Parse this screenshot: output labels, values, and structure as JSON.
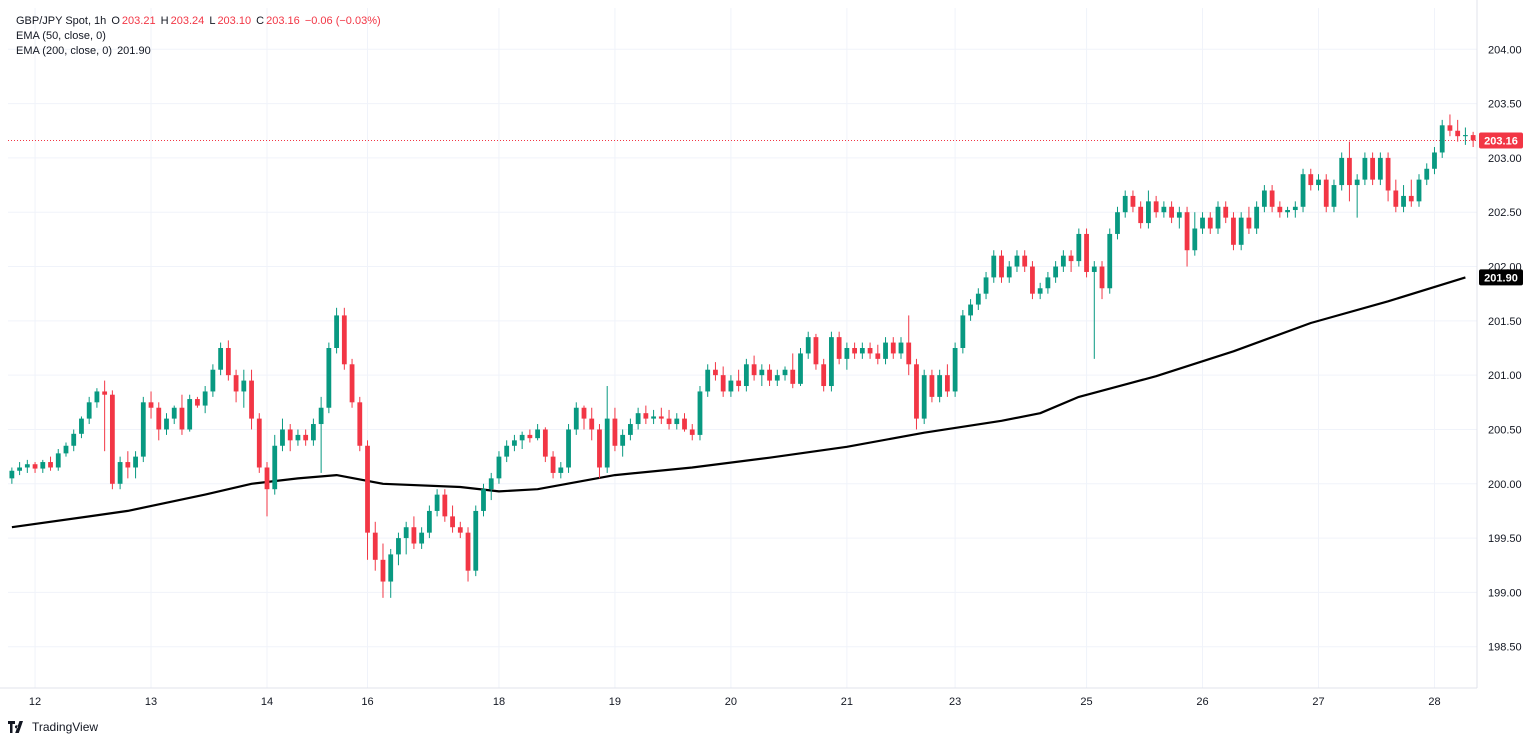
{
  "legend": {
    "symbol": "GBP/JPY Spot, 1h",
    "o_label": "O",
    "o_value": "203.21",
    "h_label": "H",
    "h_value": "203.24",
    "l_label": "L",
    "l_value": "203.10",
    "c_label": "C",
    "c_value": "203.16",
    "change": "−0.06 (−0.03%)",
    "ema50": "EMA (50, close, 0)",
    "ema200": "EMA (200, close, 0)",
    "ema200_value": "201.90"
  },
  "brand": {
    "name": "TradingView"
  },
  "colors": {
    "up": "#089981",
    "down": "#f23645",
    "ema": "#000000",
    "grid": "#f0f3fa",
    "axis_text": "#131722"
  },
  "chart_data": {
    "type": "candlestick",
    "title": "GBP/JPY Spot, 1h",
    "ylim": [
      198.12,
      204.38
    ],
    "y_ticks": [
      "204.00",
      "203.50",
      "203.00",
      "202.50",
      "202.00",
      "201.50",
      "201.00",
      "200.50",
      "200.00",
      "199.50",
      "199.00",
      "198.50"
    ],
    "x_ticks": [
      {
        "label": "12",
        "bar": 3
      },
      {
        "label": "13",
        "bar": 18
      },
      {
        "label": "14",
        "bar": 33
      },
      {
        "label": "16",
        "bar": 46
      },
      {
        "label": "18",
        "bar": 63
      },
      {
        "label": "19",
        "bar": 78
      },
      {
        "label": "20",
        "bar": 93
      },
      {
        "label": "21",
        "bar": 108
      },
      {
        "label": "23",
        "bar": 122
      },
      {
        "label": "25",
        "bar": 139
      },
      {
        "label": "26",
        "bar": 154
      },
      {
        "label": "27",
        "bar": 169
      },
      {
        "label": "28",
        "bar": 184
      }
    ],
    "last_price": 203.16,
    "last_price_label": "203.16",
    "ema200_label": "201.90",
    "candles": [
      [
        200.05,
        200.15,
        200.0,
        200.12
      ],
      [
        200.12,
        200.2,
        200.08,
        200.15
      ],
      [
        200.15,
        200.22,
        200.1,
        200.18
      ],
      [
        200.18,
        200.2,
        200.1,
        200.14
      ],
      [
        200.14,
        200.22,
        200.1,
        200.2
      ],
      [
        200.2,
        200.25,
        200.12,
        200.15
      ],
      [
        200.15,
        200.32,
        200.12,
        200.28
      ],
      [
        200.28,
        200.38,
        200.25,
        200.35
      ],
      [
        200.35,
        200.5,
        200.3,
        200.46
      ],
      [
        200.46,
        200.62,
        200.42,
        200.6
      ],
      [
        200.6,
        200.8,
        200.55,
        200.75
      ],
      [
        200.75,
        200.88,
        200.7,
        200.85
      ],
      [
        200.85,
        200.95,
        200.3,
        200.82
      ],
      [
        200.82,
        200.86,
        199.95,
        200.0
      ],
      [
        200.0,
        200.25,
        199.95,
        200.2
      ],
      [
        200.2,
        200.3,
        200.05,
        200.15
      ],
      [
        200.15,
        200.3,
        200.05,
        200.25
      ],
      [
        200.25,
        200.8,
        200.2,
        200.75
      ],
      [
        200.75,
        200.85,
        200.6,
        200.7
      ],
      [
        200.7,
        200.75,
        200.4,
        200.5
      ],
      [
        200.5,
        200.65,
        200.45,
        200.6
      ],
      [
        200.6,
        200.72,
        200.55,
        200.7
      ],
      [
        200.7,
        200.82,
        200.45,
        200.5
      ],
      [
        200.5,
        200.82,
        200.48,
        200.78
      ],
      [
        200.78,
        200.8,
        200.7,
        200.72
      ],
      [
        200.72,
        200.9,
        200.65,
        200.85
      ],
      [
        200.85,
        201.1,
        200.8,
        201.05
      ],
      [
        201.05,
        201.3,
        201.0,
        201.25
      ],
      [
        201.25,
        201.32,
        200.95,
        201.0
      ],
      [
        201.0,
        201.05,
        200.75,
        200.85
      ],
      [
        200.85,
        201.05,
        200.7,
        200.95
      ],
      [
        200.95,
        201.05,
        200.5,
        200.6
      ],
      [
        200.6,
        200.65,
        200.1,
        200.15
      ],
      [
        200.15,
        200.2,
        199.7,
        199.95
      ],
      [
        199.95,
        200.45,
        199.9,
        200.35
      ],
      [
        200.35,
        200.6,
        200.3,
        200.5
      ],
      [
        200.5,
        200.55,
        200.3,
        200.4
      ],
      [
        200.4,
        200.5,
        200.35,
        200.45
      ],
      [
        200.45,
        200.5,
        200.35,
        200.4
      ],
      [
        200.4,
        200.6,
        200.35,
        200.55
      ],
      [
        200.55,
        200.8,
        200.1,
        200.7
      ],
      [
        200.7,
        201.3,
        200.65,
        201.25
      ],
      [
        201.25,
        201.62,
        201.2,
        201.55
      ],
      [
        201.55,
        201.62,
        201.05,
        201.1
      ],
      [
        201.1,
        201.15,
        200.7,
        200.75
      ],
      [
        200.75,
        200.8,
        200.3,
        200.35
      ],
      [
        200.35,
        200.4,
        199.3,
        199.55
      ],
      [
        199.55,
        199.65,
        199.2,
        199.3
      ],
      [
        199.3,
        199.45,
        198.95,
        199.1
      ],
      [
        199.1,
        199.4,
        198.95,
        199.35
      ],
      [
        199.35,
        199.55,
        199.25,
        199.5
      ],
      [
        199.5,
        199.65,
        199.35,
        199.6
      ],
      [
        199.6,
        199.7,
        199.4,
        199.45
      ],
      [
        199.45,
        199.6,
        199.4,
        199.55
      ],
      [
        199.55,
        199.8,
        199.5,
        199.75
      ],
      [
        199.75,
        199.95,
        199.7,
        199.9
      ],
      [
        199.9,
        199.95,
        199.65,
        199.7
      ],
      [
        199.7,
        199.8,
        199.55,
        199.6
      ],
      [
        199.6,
        199.65,
        199.5,
        199.55
      ],
      [
        199.55,
        199.6,
        199.1,
        199.2
      ],
      [
        199.2,
        199.8,
        199.15,
        199.75
      ],
      [
        199.75,
        200.0,
        199.7,
        199.95
      ],
      [
        199.95,
        200.1,
        199.85,
        200.05
      ],
      [
        200.05,
        200.3,
        200.0,
        200.25
      ],
      [
        200.25,
        200.4,
        200.2,
        200.35
      ],
      [
        200.35,
        200.45,
        200.3,
        200.4
      ],
      [
        200.4,
        200.48,
        200.32,
        200.45
      ],
      [
        200.45,
        200.5,
        200.38,
        200.42
      ],
      [
        200.42,
        200.55,
        200.4,
        200.5
      ],
      [
        200.5,
        200.52,
        200.2,
        200.25
      ],
      [
        200.25,
        200.3,
        200.05,
        200.1
      ],
      [
        200.1,
        200.2,
        200.05,
        200.15
      ],
      [
        200.15,
        200.55,
        200.1,
        200.5
      ],
      [
        200.5,
        200.75,
        200.45,
        200.7
      ],
      [
        200.7,
        200.72,
        200.5,
        200.6
      ],
      [
        200.6,
        200.7,
        200.4,
        200.5
      ],
      [
        200.5,
        200.55,
        200.05,
        200.15
      ],
      [
        200.15,
        200.9,
        200.1,
        200.6
      ],
      [
        200.6,
        200.7,
        200.3,
        200.35
      ],
      [
        200.35,
        200.5,
        200.25,
        200.45
      ],
      [
        200.45,
        200.6,
        200.4,
        200.55
      ],
      [
        200.55,
        200.7,
        200.5,
        200.65
      ],
      [
        200.65,
        200.72,
        200.55,
        200.6
      ],
      [
        200.6,
        200.68,
        200.55,
        200.62
      ],
      [
        200.62,
        200.7,
        200.55,
        200.6
      ],
      [
        200.6,
        200.68,
        200.5,
        200.55
      ],
      [
        200.55,
        200.65,
        200.5,
        200.6
      ],
      [
        200.6,
        200.65,
        200.48,
        200.5
      ],
      [
        200.5,
        200.55,
        200.4,
        200.45
      ],
      [
        200.45,
        200.9,
        200.4,
        200.85
      ],
      [
        200.85,
        201.1,
        200.8,
        201.05
      ],
      [
        201.05,
        201.12,
        200.95,
        201.0
      ],
      [
        201.0,
        201.08,
        200.8,
        200.85
      ],
      [
        200.85,
        201.0,
        200.8,
        200.95
      ],
      [
        200.95,
        201.05,
        200.85,
        200.9
      ],
      [
        200.9,
        201.15,
        200.85,
        201.1
      ],
      [
        201.1,
        201.18,
        200.95,
        201.0
      ],
      [
        201.0,
        201.1,
        200.9,
        201.05
      ],
      [
        201.05,
        201.1,
        200.9,
        200.95
      ],
      [
        200.95,
        201.05,
        200.9,
        201.0
      ],
      [
        201.0,
        201.08,
        200.95,
        201.05
      ],
      [
        201.05,
        201.2,
        200.88,
        200.92
      ],
      [
        200.92,
        201.25,
        200.9,
        201.2
      ],
      [
        201.2,
        201.4,
        201.15,
        201.35
      ],
      [
        201.35,
        201.38,
        201.05,
        201.1
      ],
      [
        201.1,
        201.15,
        200.85,
        200.9
      ],
      [
        200.9,
        201.4,
        200.85,
        201.35
      ],
      [
        201.35,
        201.4,
        201.1,
        201.15
      ],
      [
        201.15,
        201.3,
        201.05,
        201.25
      ],
      [
        201.25,
        201.3,
        201.15,
        201.2
      ],
      [
        201.2,
        201.3,
        201.15,
        201.25
      ],
      [
        201.25,
        201.3,
        201.15,
        201.2
      ],
      [
        201.2,
        201.28,
        201.1,
        201.15
      ],
      [
        201.15,
        201.35,
        201.1,
        201.3
      ],
      [
        201.3,
        201.35,
        201.15,
        201.2
      ],
      [
        201.2,
        201.35,
        201.15,
        201.3
      ],
      [
        201.3,
        201.55,
        201.0,
        201.1
      ],
      [
        201.1,
        201.15,
        200.5,
        200.6
      ],
      [
        200.6,
        201.05,
        200.55,
        201.0
      ],
      [
        201.0,
        201.05,
        200.75,
        200.8
      ],
      [
        200.8,
        201.05,
        200.75,
        201.0
      ],
      [
        201.0,
        201.1,
        200.8,
        200.85
      ],
      [
        200.85,
        201.3,
        200.8,
        201.25
      ],
      [
        201.25,
        201.6,
        201.2,
        201.55
      ],
      [
        201.55,
        201.7,
        201.5,
        201.65
      ],
      [
        201.65,
        201.8,
        201.6,
        201.75
      ],
      [
        201.75,
        201.95,
        201.7,
        201.9
      ],
      [
        201.9,
        202.15,
        201.85,
        202.1
      ],
      [
        202.1,
        202.15,
        201.85,
        201.9
      ],
      [
        201.9,
        202.05,
        201.85,
        202.0
      ],
      [
        202.0,
        202.15,
        201.95,
        202.1
      ],
      [
        202.1,
        202.15,
        201.95,
        202.0
      ],
      [
        202.0,
        202.05,
        201.7,
        201.75
      ],
      [
        201.75,
        201.85,
        201.7,
        201.8
      ],
      [
        201.8,
        201.95,
        201.75,
        201.9
      ],
      [
        201.9,
        202.05,
        201.85,
        202.0
      ],
      [
        202.0,
        202.15,
        201.95,
        202.1
      ],
      [
        202.1,
        202.15,
        201.95,
        202.05
      ],
      [
        202.05,
        202.35,
        202.0,
        202.3
      ],
      [
        202.3,
        202.35,
        201.9,
        201.95
      ],
      [
        201.95,
        202.05,
        201.15,
        202.0
      ],
      [
        202.0,
        202.05,
        201.7,
        201.8
      ],
      [
        201.8,
        202.35,
        201.75,
        202.3
      ],
      [
        202.3,
        202.55,
        202.25,
        202.5
      ],
      [
        202.5,
        202.7,
        202.45,
        202.65
      ],
      [
        202.65,
        202.7,
        202.5,
        202.55
      ],
      [
        202.55,
        202.6,
        202.35,
        202.4
      ],
      [
        202.4,
        202.7,
        202.35,
        202.6
      ],
      [
        202.6,
        202.65,
        202.45,
        202.5
      ],
      [
        202.5,
        202.6,
        202.45,
        202.55
      ],
      [
        202.55,
        202.6,
        202.4,
        202.45
      ],
      [
        202.45,
        202.55,
        202.35,
        202.5
      ],
      [
        202.5,
        202.55,
        202.0,
        202.15
      ],
      [
        202.15,
        202.5,
        202.1,
        202.35
      ],
      [
        202.35,
        202.5,
        202.3,
        202.45
      ],
      [
        202.45,
        202.5,
        202.3,
        202.35
      ],
      [
        202.35,
        202.6,
        202.3,
        202.55
      ],
      [
        202.55,
        202.6,
        202.4,
        202.45
      ],
      [
        202.45,
        202.5,
        202.15,
        202.2
      ],
      [
        202.2,
        202.5,
        202.15,
        202.45
      ],
      [
        202.45,
        202.55,
        202.3,
        202.35
      ],
      [
        202.35,
        202.6,
        202.3,
        202.55
      ],
      [
        202.55,
        202.75,
        202.5,
        202.7
      ],
      [
        202.7,
        202.75,
        202.5,
        202.55
      ],
      [
        202.55,
        202.6,
        202.45,
        202.5
      ],
      [
        202.5,
        202.55,
        202.45,
        202.52
      ],
      [
        202.52,
        202.6,
        202.45,
        202.55
      ],
      [
        202.55,
        202.9,
        202.5,
        202.85
      ],
      [
        202.85,
        202.9,
        202.7,
        202.75
      ],
      [
        202.75,
        202.85,
        202.7,
        202.8
      ],
      [
        202.8,
        202.85,
        202.5,
        202.55
      ],
      [
        202.55,
        202.8,
        202.5,
        202.75
      ],
      [
        202.75,
        203.05,
        202.7,
        203.0
      ],
      [
        203.0,
        203.15,
        202.6,
        202.75
      ],
      [
        202.75,
        202.85,
        202.45,
        202.8
      ],
      [
        202.8,
        203.05,
        202.75,
        203.0
      ],
      [
        203.0,
        203.05,
        202.75,
        202.8
      ],
      [
        202.8,
        203.05,
        202.75,
        203.0
      ],
      [
        203.0,
        203.05,
        202.6,
        202.7
      ],
      [
        202.7,
        202.8,
        202.5,
        202.55
      ],
      [
        202.55,
        202.75,
        202.5,
        202.65
      ],
      [
        202.65,
        202.8,
        202.55,
        202.6
      ],
      [
        202.6,
        202.85,
        202.55,
        202.8
      ],
      [
        202.8,
        202.95,
        202.75,
        202.9
      ],
      [
        202.9,
        203.1,
        202.85,
        203.05
      ],
      [
        203.05,
        203.35,
        203.0,
        203.3
      ],
      [
        203.3,
        203.4,
        203.2,
        203.25
      ],
      [
        203.25,
        203.35,
        203.15,
        203.2
      ],
      [
        203.2,
        203.28,
        203.12,
        203.21
      ],
      [
        203.21,
        203.24,
        203.1,
        203.16
      ]
    ],
    "ema200": [
      [
        0,
        199.6
      ],
      [
        10,
        199.7
      ],
      [
        15,
        199.75
      ],
      [
        25,
        199.9
      ],
      [
        31,
        200.0
      ],
      [
        37,
        200.05
      ],
      [
        42,
        200.08
      ],
      [
        48,
        200.0
      ],
      [
        58,
        199.97
      ],
      [
        63,
        199.93
      ],
      [
        68,
        199.95
      ],
      [
        78,
        200.08
      ],
      [
        88,
        200.15
      ],
      [
        98,
        200.24
      ],
      [
        108,
        200.34
      ],
      [
        118,
        200.47
      ],
      [
        128,
        200.58
      ],
      [
        133,
        200.65
      ],
      [
        138,
        200.8
      ],
      [
        148,
        200.99
      ],
      [
        158,
        201.22
      ],
      [
        168,
        201.48
      ],
      [
        178,
        201.68
      ],
      [
        188,
        201.9
      ]
    ]
  }
}
